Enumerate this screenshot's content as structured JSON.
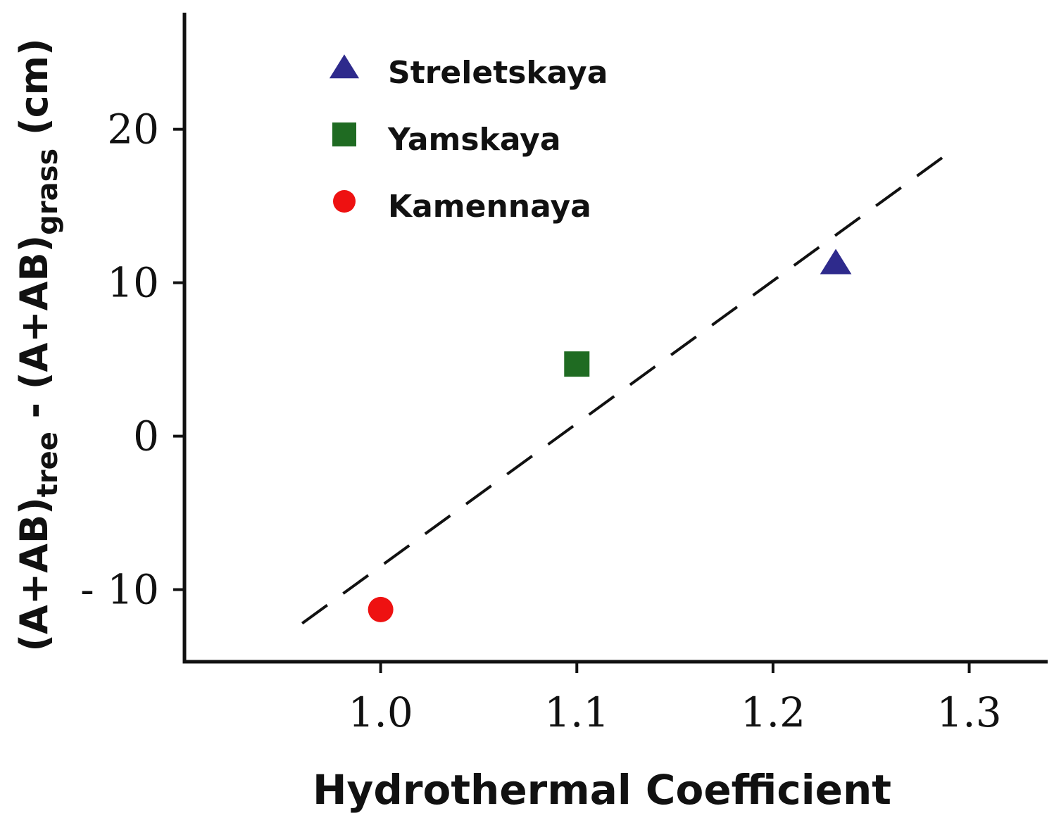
{
  "chart_data": {
    "type": "scatter",
    "title": "",
    "xlabel": "Hydrothermal Coefficient",
    "ylabel": {
      "parts": [
        {
          "text": "(A+AB)",
          "sub": false
        },
        {
          "text": "tree",
          "sub": true
        },
        {
          "text": " - (A+AB)",
          "sub": false
        },
        {
          "text": "grass",
          "sub": true
        },
        {
          "text": " (cm)",
          "sub": false
        }
      ]
    },
    "xlim": [
      0.9,
      1.34
    ],
    "ylim": [
      -14.7,
      27.6
    ],
    "x_ticks": [
      {
        "value": 1.0,
        "label": "1.0"
      },
      {
        "value": 1.1,
        "label": "1.1"
      },
      {
        "value": 1.2,
        "label": "1.2"
      },
      {
        "value": 1.3,
        "label": "1.3"
      }
    ],
    "y_ticks": [
      {
        "value": 20,
        "label": "20"
      },
      {
        "value": 10,
        "label": "10"
      },
      {
        "value": 0,
        "label": "0"
      },
      {
        "value": -10,
        "label": "- 10"
      }
    ],
    "series": [
      {
        "name": "Streletskaya",
        "marker": "triangle",
        "color": "#2e2a8c",
        "x": [
          1.232
        ],
        "y": [
          11.3
        ]
      },
      {
        "name": "Yamskaya",
        "marker": "square",
        "color": "#1f6b22",
        "x": [
          1.1
        ],
        "y": [
          4.7
        ]
      },
      {
        "name": "Kamennaya",
        "marker": "circle",
        "color": "#ee1111",
        "x": [
          1.0
        ],
        "y": [
          -11.3
        ]
      }
    ],
    "fit_line": {
      "style": "dashed",
      "color": "#111111",
      "x": [
        0.96,
        1.29
      ],
      "y": [
        -12.2,
        18.5
      ]
    },
    "legend": {
      "placement": "top-left"
    },
    "grid": false
  }
}
